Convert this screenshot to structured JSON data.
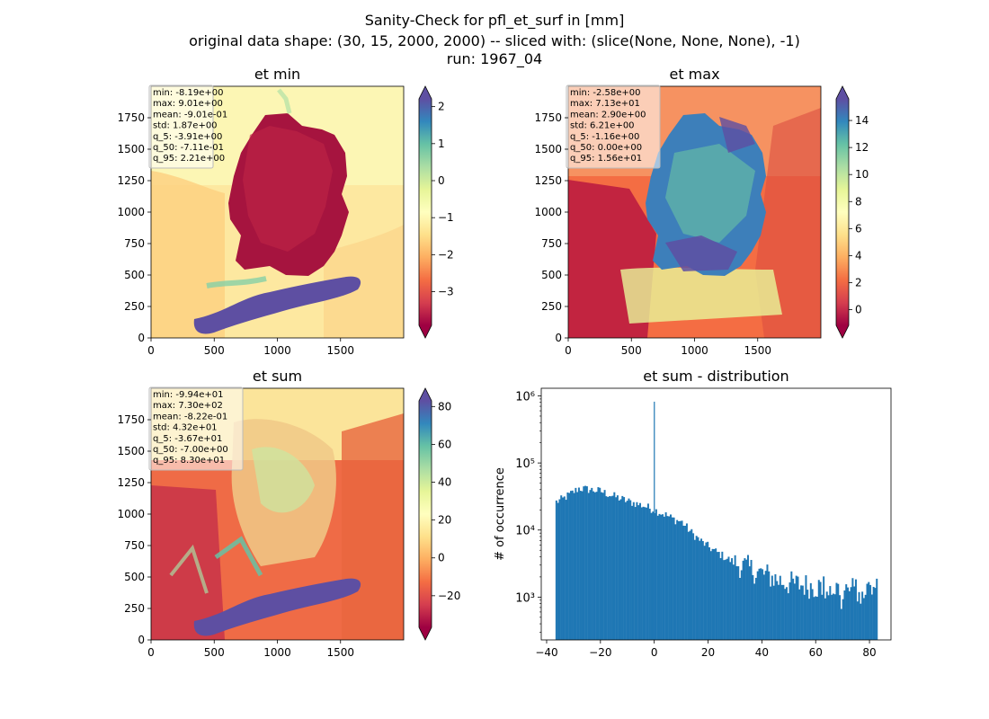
{
  "figure": {
    "title_lines": [
      "Sanity-Check for pfl_et_surf in [mm]",
      "original data shape: (30, 15, 2000, 2000) -- sliced with: (slice(None, None, None), -1)",
      "run: 1967_04"
    ]
  },
  "chart_data": [
    {
      "type": "heatmap",
      "title": "et min",
      "xlim": [
        0,
        2000
      ],
      "ylim": [
        0,
        2000
      ],
      "xticks": [
        0,
        500,
        1000,
        1500
      ],
      "yticks": [
        0,
        250,
        500,
        750,
        1000,
        1250,
        1500,
        1750
      ],
      "colormap": "Spectral",
      "colorbar": {
        "range": [
          -3.91,
          2.21
        ],
        "ticks": [
          2,
          1,
          0,
          -1,
          -2,
          -3
        ],
        "tick_labels": [
          "2",
          "1",
          "0",
          "−1",
          "−2",
          "−3"
        ],
        "extend": "both"
      },
      "stats": [
        "min: -8.19e+00",
        "max: 9.01e+00",
        "mean: -9.01e-01",
        "std: 1.87e+00",
        "q_5: -3.91e+00",
        "q_50: -7.11e-01",
        "q_95: 2.21e+00"
      ]
    },
    {
      "type": "heatmap",
      "title": "et max",
      "xlim": [
        0,
        2000
      ],
      "ylim": [
        0,
        2000
      ],
      "xticks": [
        0,
        500,
        1000,
        1500
      ],
      "yticks": [
        0,
        250,
        500,
        750,
        1000,
        1250,
        1500,
        1750
      ],
      "colormap": "Spectral",
      "colorbar": {
        "range": [
          -1.16,
          15.6
        ],
        "ticks": [
          14,
          12,
          10,
          8,
          6,
          4,
          2,
          0
        ],
        "tick_labels": [
          "14",
          "12",
          "10",
          "8",
          "6",
          "4",
          "2",
          "0"
        ],
        "extend": "both"
      },
      "stats": [
        "min: -2.58e+00",
        "max: 7.13e+01",
        "mean: 2.90e+00",
        "std: 6.21e+00",
        "q_5: -1.16e+00",
        "q_50: 0.00e+00",
        "q_95: 1.56e+01"
      ]
    },
    {
      "type": "heatmap",
      "title": "et sum",
      "xlim": [
        0,
        2000
      ],
      "ylim": [
        0,
        2000
      ],
      "xticks": [
        0,
        500,
        1000,
        1500
      ],
      "yticks": [
        0,
        250,
        500,
        750,
        1000,
        1250,
        1500,
        1750
      ],
      "colormap": "Spectral",
      "colorbar": {
        "range": [
          -36.7,
          83.0
        ],
        "ticks": [
          80,
          60,
          40,
          20,
          0,
          -20
        ],
        "tick_labels": [
          "80",
          "60",
          "40",
          "20",
          "0",
          "−20"
        ],
        "extend": "both"
      },
      "stats": [
        "min: -9.94e+01",
        "max: 7.30e+02",
        "mean: -8.22e-01",
        "std: 4.32e+01",
        "q_5: -3.67e+01",
        "q_50: -7.00e+00",
        "q_95: 8.30e+01"
      ]
    },
    {
      "type": "bar",
      "title": "et sum - distribution",
      "ylabel": "# of occurrence",
      "xlabel": "",
      "yscale": "log",
      "xlim": [
        -42,
        88
      ],
      "ylim": [
        230,
        1300000
      ],
      "xticks": [
        -40,
        -20,
        0,
        20,
        40,
        60,
        80
      ],
      "xtick_labels": [
        "−40",
        "−20",
        "0",
        "20",
        "40",
        "60",
        "80"
      ],
      "yticks": [
        1000,
        10000,
        100000,
        1000000
      ],
      "ytick_labels": [
        "10³",
        "10⁴",
        "10⁵",
        "10⁶"
      ],
      "color": "#1f77b4",
      "bin_range": [
        -36.7,
        83.0
      ],
      "bin_count": 200,
      "profile": [
        [
          -36.7,
          26000
        ],
        [
          -34,
          29000
        ],
        [
          -30,
          37000
        ],
        [
          -28,
          42000
        ],
        [
          -24,
          40000
        ],
        [
          -20,
          38000
        ],
        [
          -16,
          33000
        ],
        [
          -10,
          27000
        ],
        [
          -4,
          23000
        ],
        [
          0,
          20000
        ],
        [
          4,
          17000
        ],
        [
          8,
          14000
        ],
        [
          10,
          13500
        ],
        [
          14,
          9000
        ],
        [
          18,
          6500
        ],
        [
          22,
          5000
        ],
        [
          26,
          4000
        ],
        [
          30,
          3200
        ],
        [
          34,
          2800
        ],
        [
          38,
          2400
        ],
        [
          42,
          2100
        ],
        [
          46,
          1800
        ],
        [
          50,
          1600
        ],
        [
          56,
          1500
        ],
        [
          62,
          1400
        ],
        [
          70,
          1300
        ],
        [
          78,
          1300
        ],
        [
          83,
          1300
        ]
      ],
      "spike": {
        "x": 0,
        "value": 820000
      }
    }
  ]
}
